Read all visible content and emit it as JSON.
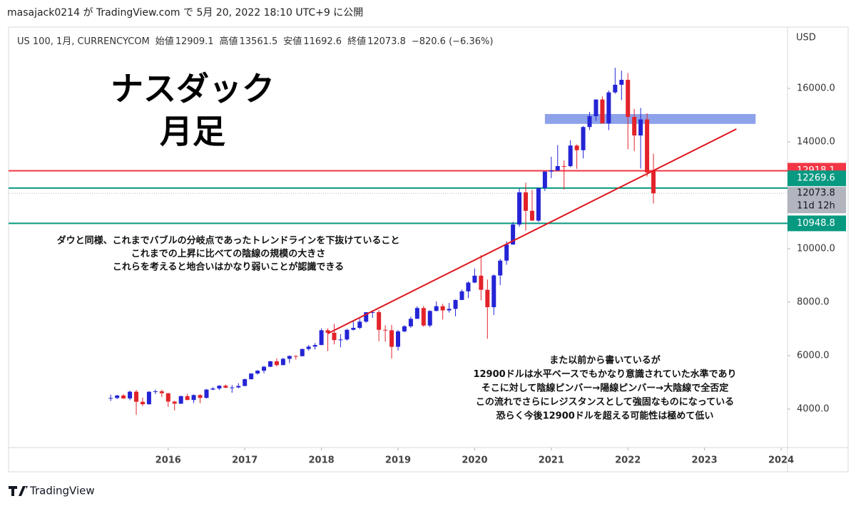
{
  "header": "masajack0214 が TradingView.com で 5月 20, 2022 18:10 UTC+9 に公開",
  "footer": "TradingView",
  "chart_data": {
    "type": "candlestick",
    "symbol": "US 100, 1月, CURRENCYCOM",
    "legend_labels": [
      "始値",
      "高値",
      "安値",
      "終値"
    ],
    "change": "−820.6 (−6.36%)",
    "currency": "USD",
    "countdown": "11d 12h",
    "title_lines": [
      "ナスダック",
      "月足"
    ],
    "annotations": [
      {
        "lines": [
          "ダウと同様、これまでバブルの分岐点であったトレンドラインを下抜けていること",
          "これまでの上昇に比べての陰線の規模の大きさ",
          "これらを考えると地合いはかなり弱いことが認識できる"
        ]
      },
      {
        "lines": [
          "また以前から書いているが",
          "12900ドルは水平ベースでもかなり意識されていた水準であり",
          "そこに対して陰線ピンバー→陽線ピンバー→大陰線で全否定",
          "この流れでさらにレジスタンスとして強固なものになっている",
          "恐らく今後12900ドルを超える可能性は極めて低い"
        ]
      }
    ],
    "up_color": "#2424d6",
    "down_color": "#e3232a",
    "last_price_color": "#b2b5be",
    "x": [
      "2015-04",
      "2015-05",
      "2015-06",
      "2015-07",
      "2015-08",
      "2015-09",
      "2015-10",
      "2015-11",
      "2015-12",
      "2016-01",
      "2016-02",
      "2016-03",
      "2016-04",
      "2016-05",
      "2016-06",
      "2016-07",
      "2016-08",
      "2016-09",
      "2016-10",
      "2016-11",
      "2016-12",
      "2017-01",
      "2017-02",
      "2017-03",
      "2017-04",
      "2017-05",
      "2017-06",
      "2017-07",
      "2017-08",
      "2017-09",
      "2017-10",
      "2017-11",
      "2017-12",
      "2018-01",
      "2018-02",
      "2018-03",
      "2018-04",
      "2018-05",
      "2018-06",
      "2018-07",
      "2018-08",
      "2018-09",
      "2018-10",
      "2018-11",
      "2018-12",
      "2019-01",
      "2019-02",
      "2019-03",
      "2019-04",
      "2019-05",
      "2019-06",
      "2019-07",
      "2019-08",
      "2019-09",
      "2019-10",
      "2019-11",
      "2019-12",
      "2020-01",
      "2020-02",
      "2020-03",
      "2020-04",
      "2020-05",
      "2020-06",
      "2020-07",
      "2020-08",
      "2020-09",
      "2020-10",
      "2020-11",
      "2020-12",
      "2021-01",
      "2021-02",
      "2021-03",
      "2021-04",
      "2021-05",
      "2021-06",
      "2021-07",
      "2021-08",
      "2021-09",
      "2021-10",
      "2021-11",
      "2021-12",
      "2022-01",
      "2022-02",
      "2022-03",
      "2022-04",
      "2022-05"
    ],
    "open": [
      4390,
      4415,
      4508,
      4397,
      4650,
      4274,
      4181,
      4648,
      4665,
      4593,
      4280,
      4202,
      4484,
      4341,
      4523,
      4418,
      4730,
      4771,
      4875,
      4801,
      4810,
      4864,
      5118,
      5331,
      5436,
      5584,
      5788,
      5646,
      5880,
      5988,
      5979,
      6248,
      6337,
      6397,
      6949,
      6856,
      6581,
      6605,
      6967,
      7040,
      7272,
      7624,
      7628,
      6967,
      6949,
      6330,
      6906,
      7097,
      7378,
      7781,
      7127,
      7672,
      7849,
      7692,
      7750,
      8083,
      8405,
      8733,
      8991,
      8462,
      7813,
      9000,
      9555,
      10157,
      10905,
      12110,
      11418,
      11052,
      12268,
      12888,
      12925,
      13093,
      13091,
      13860,
      13687,
      14554,
      14959,
      15583,
      14690,
      15850,
      16135,
      16320,
      14931,
      14238,
      14838,
      12909.1
    ],
    "high": [
      4540,
      4530,
      4560,
      4690,
      4720,
      4430,
      4670,
      4730,
      4730,
      4600,
      4310,
      4500,
      4570,
      4550,
      4560,
      4750,
      4820,
      4890,
      4920,
      4900,
      4970,
      5140,
      5340,
      5460,
      5620,
      5800,
      5900,
      5920,
      6000,
      6010,
      6260,
      6400,
      6470,
      7020,
      7020,
      7190,
      6800,
      7000,
      7300,
      7380,
      7630,
      7700,
      7700,
      7130,
      7150,
      6960,
      7140,
      7460,
      7850,
      7860,
      7700,
      8030,
      7940,
      7970,
      8100,
      8470,
      8780,
      9260,
      9760,
      8850,
      9040,
      9620,
      10280,
      11000,
      12250,
      12470,
      12200,
      12230,
      12890,
      13440,
      13880,
      13300,
      14060,
      13900,
      14590,
      15120,
      15590,
      15700,
      15920,
      16770,
      16660,
      16570,
      15230,
      15270,
      15070,
      13561.5
    ],
    "low": [
      4300,
      4370,
      4380,
      4330,
      3790,
      4110,
      4170,
      4560,
      4450,
      4080,
      3950,
      4190,
      4330,
      4220,
      4220,
      4400,
      4710,
      4710,
      4780,
      4610,
      4780,
      4860,
      5110,
      5290,
      5340,
      5570,
      5590,
      5640,
      5720,
      5850,
      5970,
      6180,
      6230,
      6390,
      6170,
      6420,
      6310,
      6560,
      6940,
      6990,
      7230,
      7410,
      6540,
      6520,
      5890,
      6190,
      6870,
      7040,
      7370,
      7080,
      7060,
      7660,
      7350,
      7610,
      7470,
      8080,
      8150,
      8710,
      8070,
      6630,
      7520,
      8640,
      9400,
      10150,
      10820,
      10680,
      11050,
      11000,
      12160,
      12640,
      12940,
      12210,
      13050,
      12990,
      13380,
      14440,
      14780,
      14800,
      14440,
      15800,
      15560,
      13720,
      13650,
      13000,
      12700,
      11692.6
    ],
    "close": [
      4415,
      4508,
      4397,
      4650,
      4274,
      4181,
      4648,
      4665,
      4593,
      4280,
      4202,
      4484,
      4341,
      4523,
      4418,
      4730,
      4771,
      4875,
      4801,
      4810,
      4864,
      5118,
      5331,
      5436,
      5584,
      5788,
      5646,
      5880,
      5988,
      5979,
      6248,
      6337,
      6397,
      6949,
      6856,
      6581,
      6605,
      6967,
      7040,
      7272,
      7624,
      7628,
      6967,
      6949,
      6330,
      6906,
      7097,
      7378,
      7781,
      7127,
      7672,
      7849,
      7692,
      7750,
      8083,
      8405,
      8733,
      8991,
      8462,
      7813,
      9000,
      9555,
      10157,
      10905,
      12110,
      11418,
      11052,
      12268,
      12888,
      12925,
      13093,
      13091,
      13860,
      13687,
      14554,
      14959,
      15583,
      14690,
      15850,
      16135,
      16320,
      14931,
      14238,
      14838,
      12855,
      12073.8
    ],
    "xlim": [
      "2013-12",
      "2024-02"
    ],
    "ylim": [
      2560,
      18240
    ],
    "xticks": [
      2016,
      2017,
      2018,
      2019,
      2020,
      2021,
      2022,
      2023,
      2024
    ],
    "yticks": [
      {
        "value": 4000,
        "label": "4000.0"
      },
      {
        "value": 6000,
        "label": "6000.0"
      },
      {
        "value": 8000,
        "label": "8000.0"
      },
      {
        "value": 10000,
        "label": "10000.0"
      },
      {
        "value": 14000,
        "label": "14000.0"
      },
      {
        "value": 16000,
        "label": "16000.0"
      }
    ],
    "lines": [
      {
        "value": 12918.1,
        "color": "#f23645"
      },
      {
        "value": 12269.6,
        "color": "#089981"
      },
      {
        "value": 10948.8,
        "color": "#089981"
      }
    ],
    "zone": {
      "x": [
        "2020-12",
        "2023-09"
      ],
      "y": [
        14670,
        15040
      ],
      "color": "#8ea2ea"
    },
    "trendline": {
      "x": [
        "2018-02",
        "2023-06"
      ],
      "y": [
        6827,
        14480
      ],
      "color": "#e0161e"
    }
  }
}
